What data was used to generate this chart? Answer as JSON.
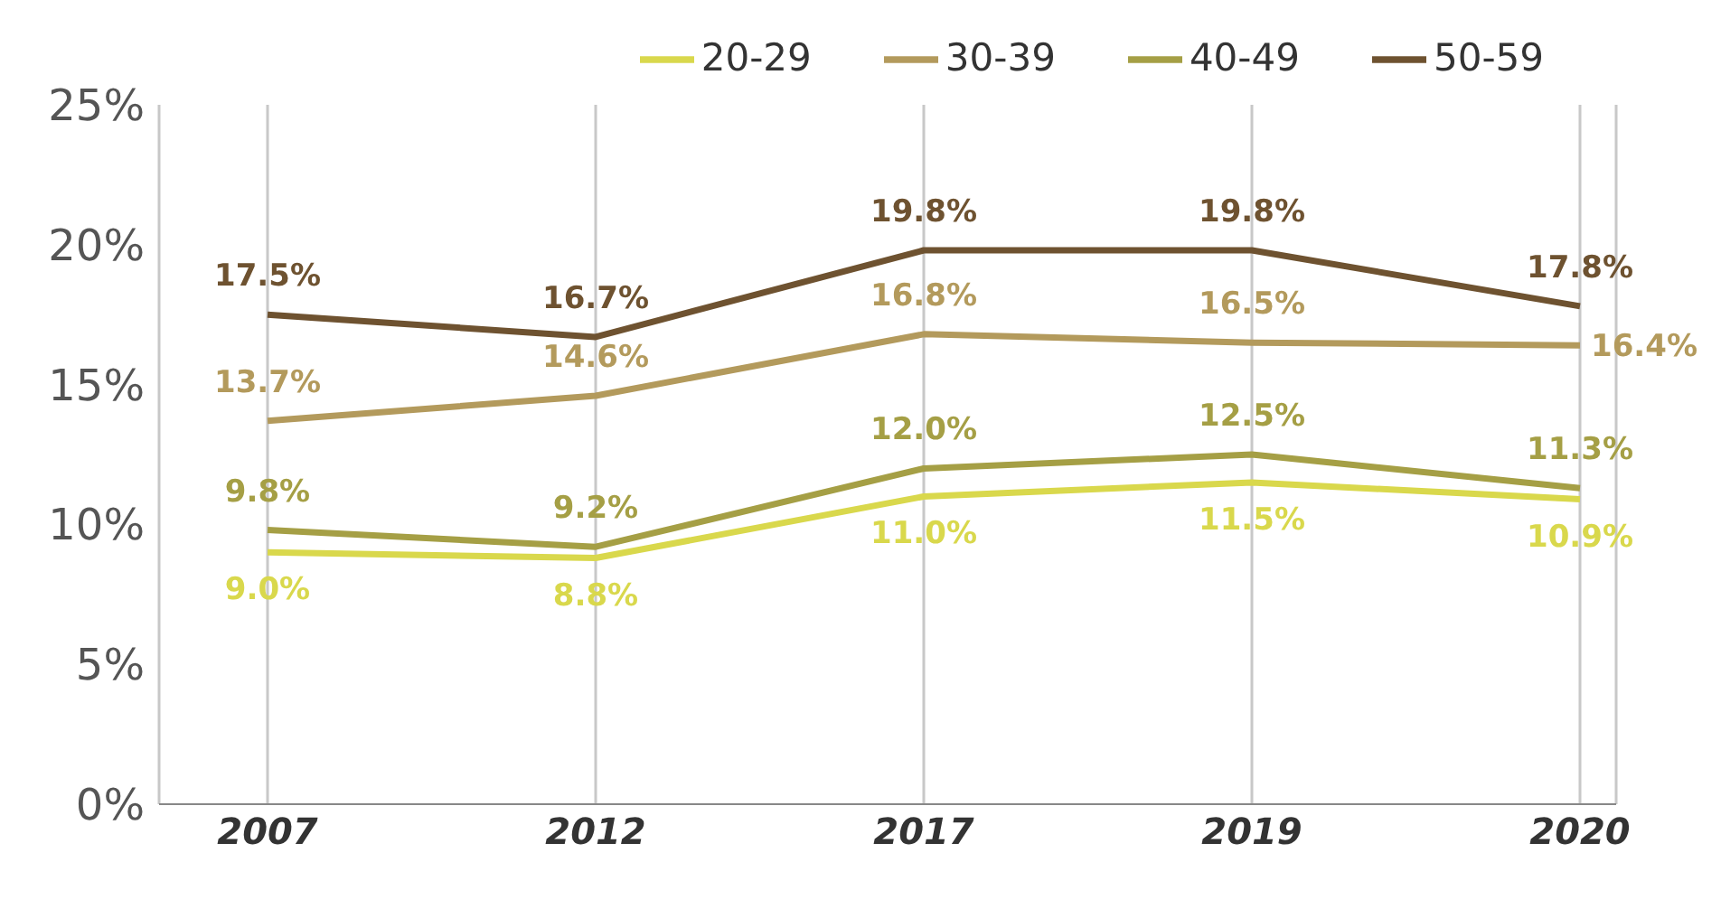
{
  "chart_data": {
    "type": "line",
    "categories": [
      "2007",
      "2012",
      "2017",
      "2019",
      "2020"
    ],
    "series": [
      {
        "name": "20-29",
        "color": "#d9d84c",
        "values": [
          9.0,
          8.8,
          11.0,
          11.5,
          10.9
        ],
        "value_labels": [
          "9.0%",
          "8.8%",
          "11.0%",
          "11.5%",
          "10.9%"
        ]
      },
      {
        "name": "30-39",
        "color": "#b39a5c",
        "values": [
          13.7,
          14.6,
          16.8,
          16.5,
          16.4
        ],
        "value_labels": [
          "13.7%",
          "14.6%",
          "16.8%",
          "16.5%",
          "16.4%"
        ]
      },
      {
        "name": "40-49",
        "color": "#a59f45",
        "values": [
          9.8,
          9.2,
          12.0,
          12.5,
          11.3
        ],
        "value_labels": [
          "9.8%",
          "9.2%",
          "12.0%",
          "12.5%",
          "11.3%"
        ]
      },
      {
        "name": "50-59",
        "color": "#6e5230",
        "values": [
          17.5,
          16.7,
          19.8,
          19.8,
          17.8
        ],
        "value_labels": [
          "17.5%",
          "16.7%",
          "19.8%",
          "19.8%",
          "17.8%"
        ]
      }
    ],
    "ylim": [
      0,
      25
    ],
    "yticks": [
      {
        "value": 0,
        "label": "0%"
      },
      {
        "value": 5,
        "label": "5%"
      },
      {
        "value": 10,
        "label": "10%"
      },
      {
        "value": 15,
        "label": "15%"
      },
      {
        "value": 20,
        "label": "20%"
      },
      {
        "value": 25,
        "label": "25%"
      }
    ],
    "grid": "x",
    "legend": "top",
    "marker": "none",
    "line_style": "solid"
  }
}
